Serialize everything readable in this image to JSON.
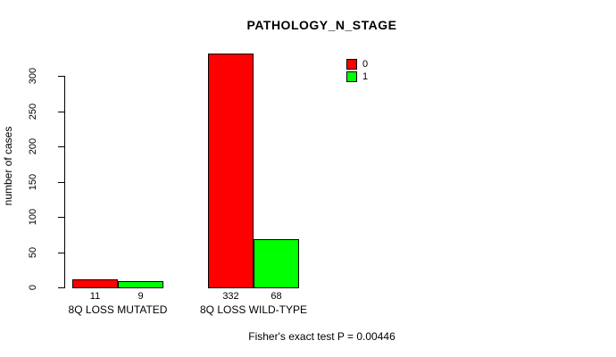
{
  "title": "PATHOLOGY_N_STAGE",
  "ylabel": "number of cases",
  "footer": "Fisher's exact test P = 0.00446",
  "legend": {
    "position": "top-right",
    "items": [
      {
        "label": "0",
        "color": "#FF0000"
      },
      {
        "label": "1",
        "color": "#00FF00"
      }
    ]
  },
  "chart_data": {
    "type": "bar",
    "title": "PATHOLOGY_N_STAGE",
    "xlabel": "",
    "ylabel": "number of cases",
    "categories": [
      "8Q LOSS MUTATED",
      "8Q LOSS WILD-TYPE"
    ],
    "series": [
      {
        "name": "0",
        "color": "#FF0000",
        "values": [
          11,
          332
        ]
      },
      {
        "name": "1",
        "color": "#00FF00",
        "values": [
          9,
          68
        ]
      }
    ],
    "value_labels": [
      [
        "11",
        "332"
      ],
      [
        "9",
        "68"
      ]
    ],
    "yticks": [
      0,
      50,
      100,
      150,
      200,
      250,
      300
    ],
    "ylim": [
      0,
      332
    ],
    "grid": false,
    "legend_position": "top-right",
    "annotation": "Fisher's exact test P = 0.00446",
    "bar_border_color": "#000000",
    "background_color": "#FFFFFF"
  }
}
